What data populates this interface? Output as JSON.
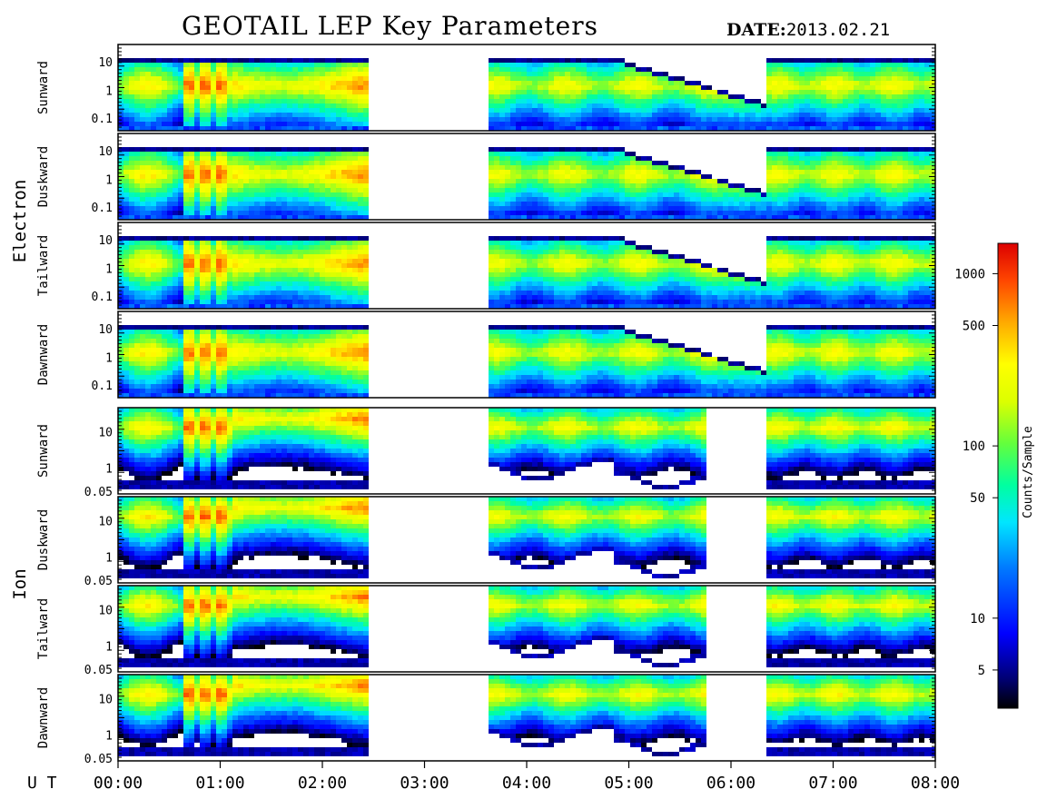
{
  "header": {
    "title": "GEOTAIL LEP Key Parameters",
    "date_label": "DATE:",
    "date_value": "2013.02.21"
  },
  "chart_data": {
    "type": "heatmap",
    "title": "GEOTAIL LEP Key Parameters",
    "x_axis": {
      "label": "U T",
      "ticks": [
        "00:00",
        "01:00",
        "02:00",
        "03:00",
        "04:00",
        "05:00",
        "06:00",
        "07:00",
        "08:00"
      ],
      "range_hours": [
        0,
        8
      ]
    },
    "data_gap": {
      "start": "02:30",
      "end": "03:35"
    },
    "groups": [
      {
        "name": "Electron",
        "panels": [
          "Sunward",
          "Duskward",
          "Tailward",
          "Dawnward"
        ],
        "y_scale": "log",
        "y_ticks": [
          "10",
          "1",
          "0.1"
        ]
      },
      {
        "name": "Ion",
        "panels": [
          "Sunward",
          "Duskward",
          "Tailward",
          "Dawnward"
        ],
        "y_scale": "log",
        "y_ticks": [
          "10",
          "1",
          "0.05"
        ]
      }
    ],
    "colorbar": {
      "label": "Counts/Sample",
      "scale": "log",
      "ticks": [
        "1000",
        "500",
        "100",
        "50",
        "10",
        "5"
      ],
      "tick_values": [
        1000,
        500,
        100,
        50,
        10,
        5
      ],
      "range": [
        3,
        1500
      ],
      "colors": [
        "#000000",
        "#0000aa",
        "#0000ff",
        "#00a0ff",
        "#00ffc8",
        "#50ff50",
        "#c8ff00",
        "#ffff00",
        "#ffb000",
        "#ff4000",
        "#dd0000"
      ]
    }
  }
}
